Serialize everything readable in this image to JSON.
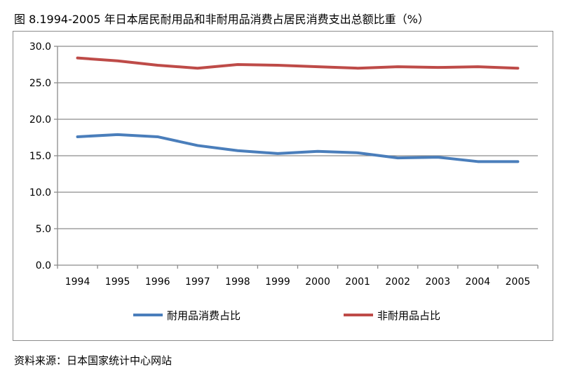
{
  "title": "图 8.1994-2005 年日本居民耐用品和非耐用品消费占居民消费支出总额比重（%）",
  "source": "资料来源：日本国家统计中心网站",
  "chart_data": {
    "type": "line",
    "title": "图 8.1994-2005 年日本居民耐用品和非耐用品消费占居民消费支出总额比重（%）",
    "xlabel": "",
    "ylabel": "",
    "categories": [
      "1994",
      "1995",
      "1996",
      "1997",
      "1998",
      "1999",
      "2000",
      "2001",
      "2002",
      "2003",
      "2004",
      "2005"
    ],
    "ylim": [
      0,
      30
    ],
    "yticks": [
      "0.0",
      "5.0",
      "10.0",
      "15.0",
      "20.0",
      "25.0",
      "30.0"
    ],
    "grid": true,
    "legend_position": "bottom",
    "series": [
      {
        "name": "耐用品消费占比",
        "color": "#4a7ebb",
        "values": [
          17.6,
          17.9,
          17.6,
          16.4,
          15.7,
          15.3,
          15.6,
          15.4,
          14.7,
          14.8,
          14.2,
          14.2
        ]
      },
      {
        "name": "非耐用品占比",
        "color": "#be4b48",
        "values": [
          28.4,
          28.0,
          27.4,
          27.0,
          27.5,
          27.4,
          27.2,
          27.0,
          27.2,
          27.1,
          27.2,
          27.0
        ]
      }
    ]
  }
}
